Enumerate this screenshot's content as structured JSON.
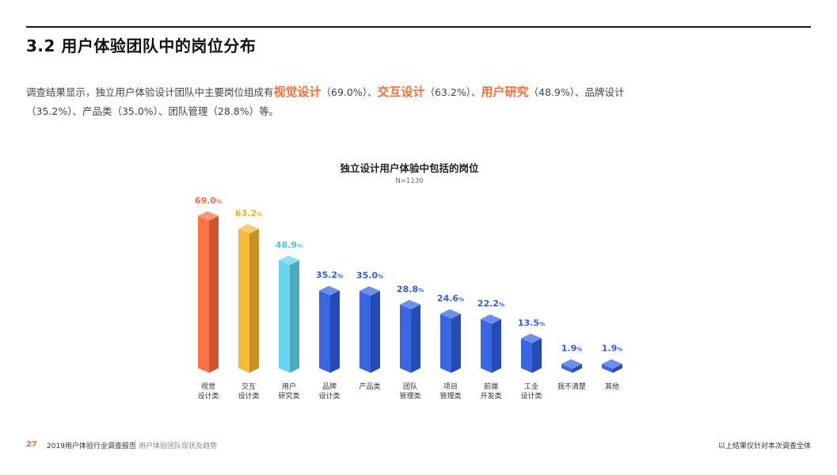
{
  "page": {
    "section_title": "3.2 用户体验团队中的岗位分布",
    "summary": {
      "segments": [
        {
          "text": "调查结果显示，独立用户体验设计团队中主要岗位组成有",
          "highlight": false
        },
        {
          "text": "视觉设计",
          "highlight": true
        },
        {
          "text": "（69.0%）、",
          "highlight": false
        },
        {
          "text": "交互设计",
          "highlight": true
        },
        {
          "text": "（63.2%）、",
          "highlight": false
        },
        {
          "text": "用户研究",
          "highlight": true
        },
        {
          "text": "（48.9%）、品牌设计（35.2%）、产品类（35.0%）、团队管理（28.8%）等。",
          "highlight": false
        }
      ],
      "highlight_color": "#ff6b35"
    }
  },
  "chart_data": {
    "type": "bar",
    "title": "独立设计用户体验中包括的岗位",
    "subtitle": "N=1130",
    "value_suffix": "%",
    "categories": [
      [
        "视觉",
        "设计类"
      ],
      [
        "交互",
        "设计类"
      ],
      [
        "用户",
        "研究类"
      ],
      [
        "品牌",
        "设计类"
      ],
      [
        "产品类"
      ],
      [
        "团队",
        "管理类"
      ],
      [
        "项目",
        "管理类"
      ],
      [
        "前端",
        "开发类"
      ],
      [
        "工业",
        "设计类"
      ],
      [
        "我不清楚"
      ],
      [
        "其他"
      ]
    ],
    "values": [
      69.0,
      63.2,
      48.9,
      35.2,
      35.0,
      28.8,
      24.6,
      22.2,
      13.5,
      1.9,
      1.9
    ],
    "ylim": [
      0,
      70
    ],
    "bar_colors": [
      "#ff6b3d",
      "#f5b731",
      "#5fd3f0",
      "#2f5fe0",
      "#2f5fe0",
      "#2f5fe0",
      "#2f5fe0",
      "#2f5fe0",
      "#2f5fe0",
      "#2f5fe0",
      "#2f5fe0"
    ],
    "label_colors": [
      "#ff6b3d",
      "#f2b01e",
      "#4cc3ea",
      "#2f5fe0",
      "#2f5fe0",
      "#2f5fe0",
      "#2f5fe0",
      "#2f5fe0",
      "#2f5fe0",
      "#2f5fe0",
      "#2f5fe0"
    ],
    "grid": false,
    "legend": "none"
  },
  "footer": {
    "page_number": "27",
    "report_title": "2019用户体验行业调查报告",
    "separator": "|",
    "section_name": "用户体验团队现状及趋势",
    "note": "以上结果仅针对本次调查全体"
  }
}
